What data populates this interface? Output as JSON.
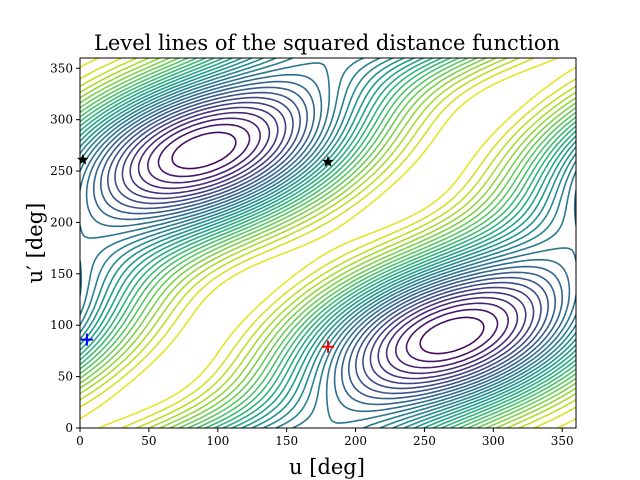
{
  "chart_data": {
    "type": "contour",
    "title": "Level lines of the squared distance function",
    "xlabel": "u [deg]",
    "ylabel": "u′ [deg]",
    "xlim": [
      0,
      360
    ],
    "ylim": [
      0,
      360
    ],
    "xticks": [
      0,
      50,
      100,
      150,
      200,
      250,
      300,
      350
    ],
    "yticks": [
      0,
      50,
      100,
      150,
      200,
      250,
      300,
      350
    ],
    "colormap": "viridis",
    "grid": false,
    "markers": [
      {
        "name": "red-plus",
        "symbol": "plus",
        "color": "#ff0000",
        "x": 180,
        "y": 79
      },
      {
        "name": "blue-plus",
        "symbol": "plus",
        "color": "#0000ff",
        "x": 5,
        "y": 86
      },
      {
        "name": "black-star-1",
        "symbol": "star",
        "color": "#000000",
        "x": 180,
        "y": 259
      },
      {
        "name": "black-star-2",
        "symbol": "star",
        "color": "#000000",
        "x": 2,
        "y": 261
      }
    ]
  }
}
